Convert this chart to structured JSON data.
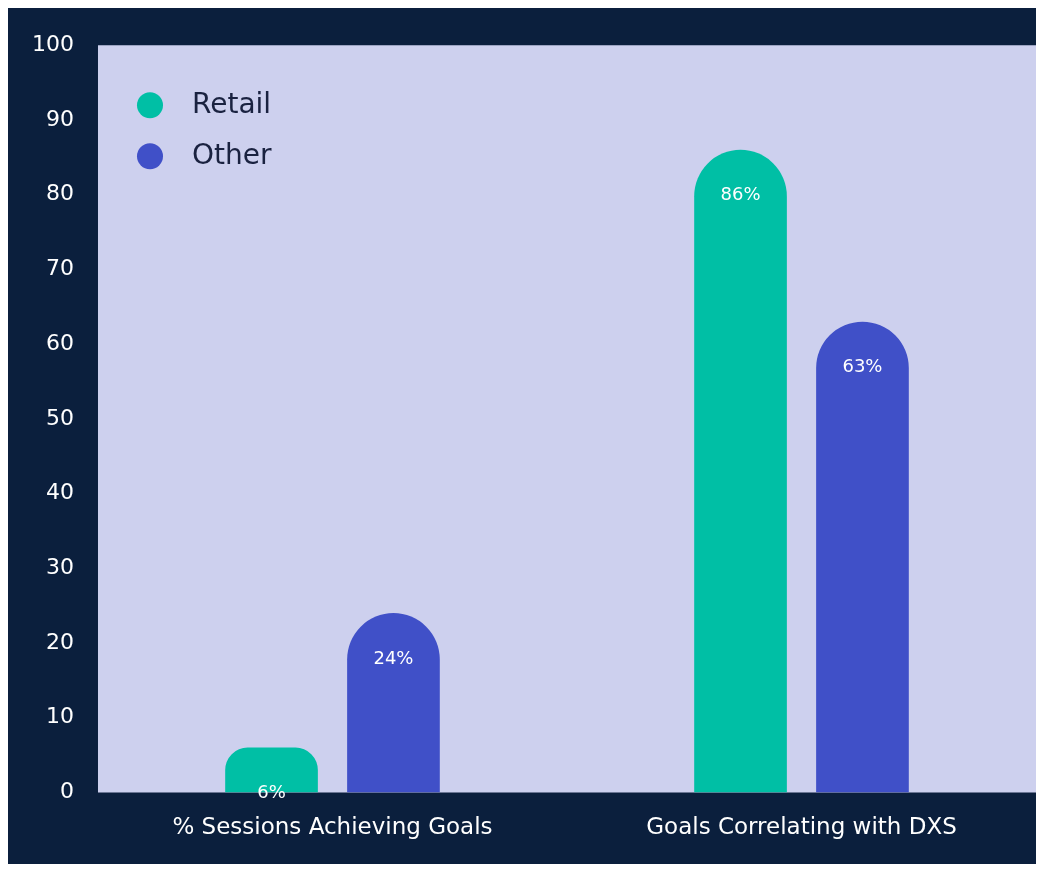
{
  "chart_data": {
    "type": "bar",
    "categories": [
      "% Sessions Achieving Goals",
      "Goals Correlating with DXS"
    ],
    "series": [
      {
        "name": "Retail",
        "color": "#00bfa5",
        "values": [
          6,
          86
        ],
        "value_labels": [
          "6%",
          "86%"
        ]
      },
      {
        "name": "Other",
        "color": "#4050c8",
        "values": [
          24,
          63
        ],
        "value_labels": [
          "24%",
          "63%"
        ]
      }
    ],
    "ylim": [
      0,
      100
    ],
    "yticks": [
      0,
      10,
      20,
      30,
      40,
      50,
      60,
      70,
      80,
      90,
      100
    ],
    "grid": false,
    "legend": "top left"
  }
}
